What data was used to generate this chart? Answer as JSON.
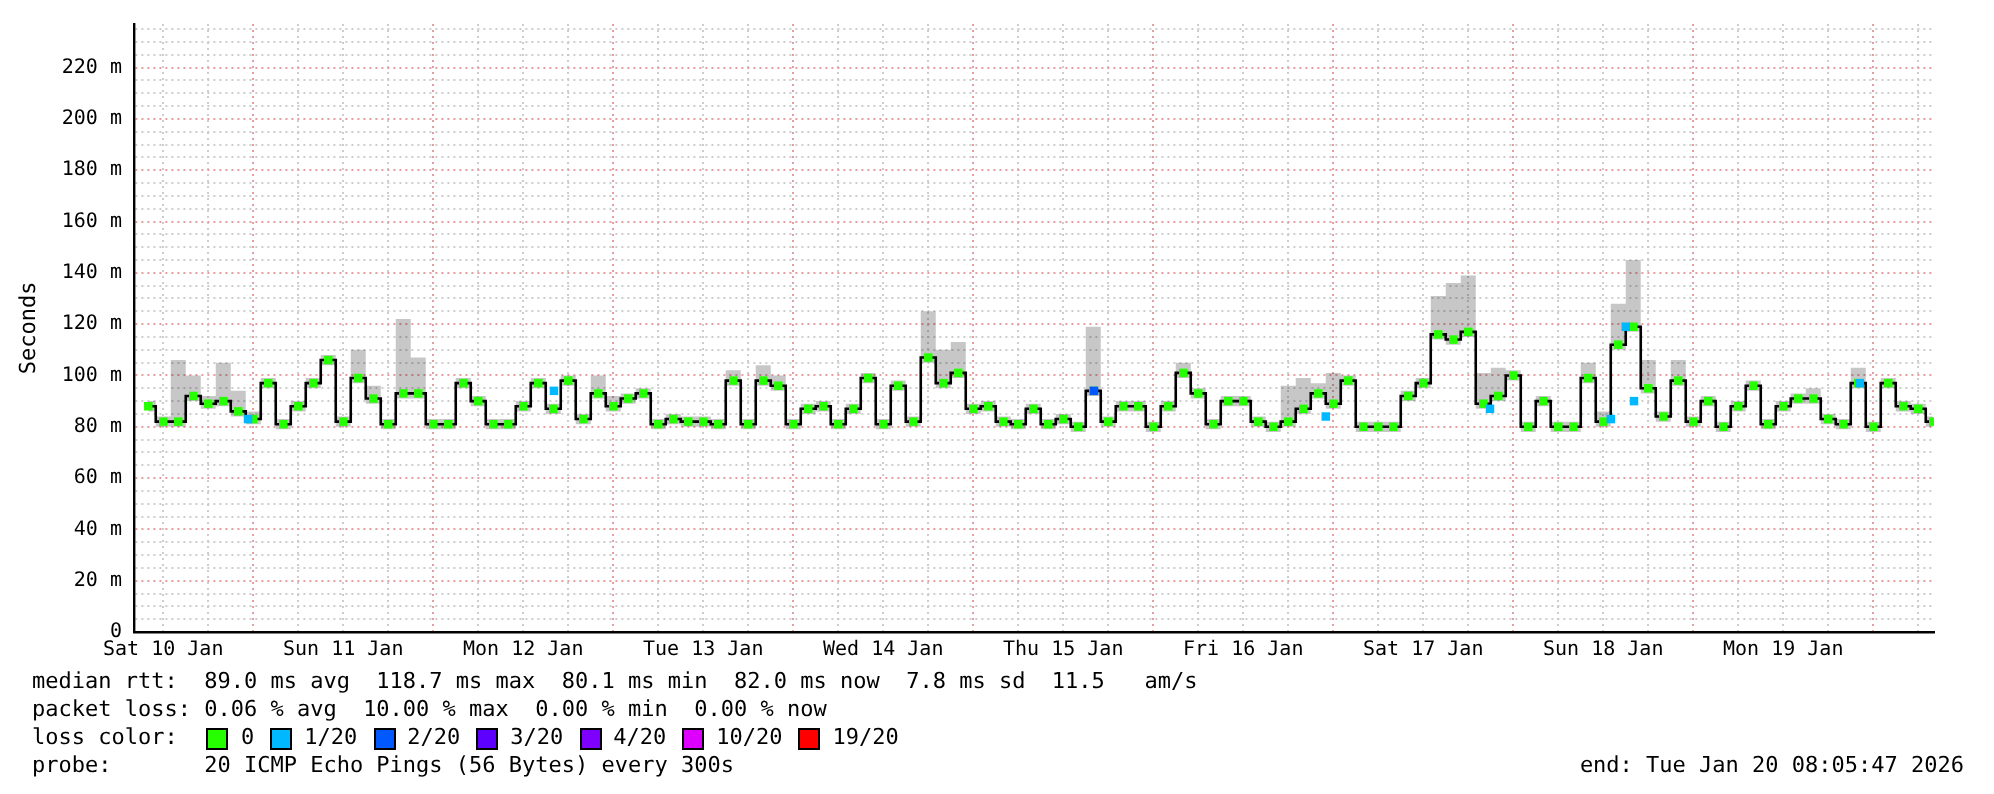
{
  "chart_data": {
    "type": "line",
    "ylabel": "Seconds",
    "grid": true,
    "legend": "bottom",
    "legend_title": "loss color:",
    "xlim": [
      "2026-01-10T08:06",
      "2026-01-20T08:06"
    ],
    "ylim": [
      0,
      237
    ],
    "x": [
      "2026-01-10T10:00",
      "2026-01-10T12:00",
      "2026-01-10T14:00",
      "2026-01-10T16:00",
      "2026-01-10T18:00",
      "2026-01-10T20:00",
      "2026-01-10T22:00",
      "2026-01-11T00:00",
      "2026-01-11T02:00",
      "2026-01-11T04:00",
      "2026-01-11T06:00",
      "2026-01-11T08:00",
      "2026-01-11T10:00",
      "2026-01-11T12:00",
      "2026-01-11T14:00",
      "2026-01-11T16:00",
      "2026-01-11T18:00",
      "2026-01-11T20:00",
      "2026-01-11T22:00",
      "2026-01-12T00:00",
      "2026-01-12T02:00",
      "2026-01-12T04:00",
      "2026-01-12T06:00",
      "2026-01-12T08:00",
      "2026-01-12T10:00",
      "2026-01-12T12:00",
      "2026-01-12T14:00",
      "2026-01-12T16:00",
      "2026-01-12T18:00",
      "2026-01-12T20:00",
      "2026-01-12T22:00",
      "2026-01-13T00:00",
      "2026-01-13T02:00",
      "2026-01-13T04:00",
      "2026-01-13T06:00",
      "2026-01-13T08:00",
      "2026-01-13T10:00",
      "2026-01-13T12:00",
      "2026-01-13T14:00",
      "2026-01-13T16:00",
      "2026-01-13T18:00",
      "2026-01-13T20:00",
      "2026-01-13T22:00",
      "2026-01-14T00:00",
      "2026-01-14T02:00",
      "2026-01-14T04:00",
      "2026-01-14T06:00",
      "2026-01-14T08:00",
      "2026-01-14T10:00",
      "2026-01-14T12:00",
      "2026-01-14T14:00",
      "2026-01-14T16:00",
      "2026-01-14T18:00",
      "2026-01-14T20:00",
      "2026-01-14T22:00",
      "2026-01-15T00:00",
      "2026-01-15T02:00",
      "2026-01-15T04:00",
      "2026-01-15T06:00",
      "2026-01-15T08:00",
      "2026-01-15T10:00",
      "2026-01-15T12:00",
      "2026-01-15T14:00",
      "2026-01-15T16:00",
      "2026-01-15T18:00",
      "2026-01-15T20:00",
      "2026-01-15T22:00",
      "2026-01-16T00:00",
      "2026-01-16T02:00",
      "2026-01-16T04:00",
      "2026-01-16T06:00",
      "2026-01-16T08:00",
      "2026-01-16T10:00",
      "2026-01-16T12:00",
      "2026-01-16T14:00",
      "2026-01-16T16:00",
      "2026-01-16T18:00",
      "2026-01-16T20:00",
      "2026-01-16T22:00",
      "2026-01-17T00:00",
      "2026-01-17T02:00",
      "2026-01-17T04:00",
      "2026-01-17T06:00",
      "2026-01-17T08:00",
      "2026-01-17T10:00",
      "2026-01-17T12:00",
      "2026-01-17T14:00",
      "2026-01-17T16:00",
      "2026-01-17T18:00",
      "2026-01-17T20:00",
      "2026-01-17T22:00",
      "2026-01-18T00:00",
      "2026-01-18T02:00",
      "2026-01-18T04:00",
      "2026-01-18T06:00",
      "2026-01-18T08:00",
      "2026-01-18T10:00",
      "2026-01-18T12:00",
      "2026-01-18T14:00",
      "2026-01-18T16:00",
      "2026-01-18T18:00",
      "2026-01-18T20:00",
      "2026-01-18T22:00",
      "2026-01-19T00:00",
      "2026-01-19T02:00",
      "2026-01-19T04:00",
      "2026-01-19T06:00",
      "2026-01-19T08:00",
      "2026-01-19T10:00",
      "2026-01-19T12:00",
      "2026-01-19T14:00",
      "2026-01-19T16:00",
      "2026-01-19T18:00",
      "2026-01-19T20:00",
      "2026-01-19T22:00",
      "2026-01-20T00:00",
      "2026-01-20T02:00",
      "2026-01-20T04:00",
      "2026-01-20T06:00",
      "2026-01-20T08:00"
    ],
    "series": [
      {
        "type": "step",
        "color": "#000000",
        "marker": "none",
        "values": [
          88,
          82,
          82,
          92,
          89,
          90,
          86,
          83,
          97,
          81,
          88,
          97,
          106,
          82,
          99,
          91,
          81,
          93,
          93,
          81,
          81,
          97,
          90,
          81,
          81,
          88,
          97,
          87,
          98,
          83,
          93,
          88,
          91,
          93,
          81,
          83,
          82,
          82,
          81,
          98,
          81,
          98,
          96,
          81,
          87,
          88,
          81,
          87,
          99,
          81,
          96,
          82,
          107,
          97,
          101,
          87,
          88,
          82,
          81,
          87,
          81,
          83,
          80,
          94,
          82,
          88,
          88,
          80,
          88,
          101,
          93,
          81,
          90,
          90,
          82,
          80,
          82,
          87,
          93,
          89,
          98,
          80,
          80,
          80,
          92,
          97,
          116,
          114,
          117,
          89,
          92,
          100,
          80,
          90,
          80,
          80,
          99,
          82,
          112,
          119,
          95,
          84,
          98,
          82,
          90,
          80,
          88,
          96,
          81,
          88,
          91,
          91,
          83,
          81,
          97,
          80,
          97,
          88,
          87,
          82
        ],
        "lower": [
          86,
          80,
          80,
          90,
          87,
          88,
          84,
          81,
          95,
          79,
          86,
          95,
          104,
          80,
          97,
          89,
          79,
          91,
          91,
          79,
          79,
          95,
          88,
          79,
          79,
          86,
          95,
          85,
          96,
          81,
          91,
          86,
          89,
          91,
          79,
          81,
          80,
          80,
          79,
          96,
          79,
          96,
          94,
          79,
          85,
          86,
          79,
          85,
          97,
          79,
          94,
          80,
          105,
          95,
          99,
          85,
          86,
          80,
          79,
          85,
          79,
          81,
          78,
          92,
          80,
          86,
          86,
          78,
          86,
          99,
          91,
          79,
          88,
          88,
          80,
          78,
          80,
          85,
          91,
          87,
          96,
          78,
          78,
          78,
          90,
          95,
          114,
          112,
          115,
          87,
          90,
          98,
          78,
          88,
          78,
          78,
          97,
          80,
          110,
          117,
          93,
          82,
          96,
          80,
          88,
          78,
          86,
          94,
          79,
          86,
          89,
          89,
          81,
          79,
          95,
          78,
          95,
          86,
          85,
          80
        ],
        "upper": [
          90,
          84,
          106,
          100,
          92,
          105,
          94,
          86,
          99,
          83,
          90,
          99,
          108,
          84,
          110,
          96,
          83,
          122,
          107,
          83,
          83,
          99,
          92,
          83,
          83,
          90,
          99,
          89,
          100,
          85,
          100,
          92,
          93,
          95,
          83,
          85,
          84,
          84,
          83,
          102,
          83,
          104,
          100,
          83,
          89,
          90,
          83,
          89,
          101,
          83,
          98,
          84,
          125,
          110,
          113,
          89,
          90,
          84,
          83,
          89,
          83,
          85,
          82,
          119,
          84,
          90,
          90,
          82,
          90,
          105,
          95,
          83,
          92,
          92,
          84,
          82,
          96,
          99,
          97,
          101,
          100,
          82,
          82,
          82,
          94,
          99,
          131,
          136,
          139,
          101,
          103,
          102,
          82,
          92,
          82,
          82,
          105,
          86,
          128,
          145,
          106,
          86,
          106,
          84,
          92,
          82,
          90,
          98,
          83,
          90,
          93,
          95,
          85,
          83,
          103,
          82,
          99,
          90,
          89,
          84
        ]
      },
      {
        "name": "0",
        "type": "scatter",
        "color": "#26ff00",
        "marker": "square",
        "values": [
          88,
          82,
          82,
          92,
          89,
          90,
          86,
          83,
          97,
          81,
          88,
          97,
          106,
          82,
          99,
          91,
          81,
          93,
          93,
          81,
          81,
          97,
          90,
          81,
          81,
          88,
          97,
          87,
          98,
          83,
          93,
          88,
          91,
          93,
          81,
          83,
          82,
          82,
          81,
          98,
          81,
          98,
          96,
          81,
          87,
          88,
          81,
          87,
          99,
          81,
          96,
          82,
          107,
          97,
          101,
          87,
          88,
          82,
          81,
          87,
          81,
          83,
          80,
          94,
          82,
          88,
          88,
          80,
          88,
          101,
          93,
          81,
          90,
          90,
          82,
          80,
          82,
          87,
          93,
          89,
          98,
          80,
          80,
          80,
          92,
          97,
          116,
          114,
          117,
          89,
          92,
          100,
          80,
          90,
          80,
          80,
          99,
          82,
          112,
          119,
          95,
          84,
          98,
          82,
          90,
          80,
          88,
          96,
          81,
          88,
          91,
          91,
          83,
          81,
          97,
          80,
          97,
          88,
          87,
          82
        ]
      },
      {
        "name": "1/20",
        "type": "scatter",
        "color": "#00b8ff",
        "marker": "square",
        "x": [
          "2026-01-10T23:18",
          "2026-01-12T16:06",
          "2026-01-16T23:00",
          "2026-01-17T20:54",
          "2026-01-18T13:00",
          "2026-01-18T15:00",
          "2026-01-18T16:06",
          "2026-01-19T22:12"
        ],
        "values": [
          83,
          94,
          84,
          87,
          83,
          119,
          90,
          97
        ]
      },
      {
        "name": "2/20",
        "type": "scatter",
        "color": "#0059ff",
        "marker": "square",
        "x": [
          "2026-01-15T16:06"
        ],
        "values": [
          94
        ]
      },
      {
        "name": "3/20",
        "type": "scatter",
        "color": "#5e00ff",
        "marker": "square",
        "values": [
          null,
          null,
          null,
          null,
          null,
          null,
          null,
          null,
          null,
          null,
          null,
          null,
          null,
          null,
          null,
          null,
          null,
          null,
          null,
          null,
          null,
          null,
          null,
          null,
          null,
          null,
          null,
          null,
          null,
          null,
          null,
          null,
          null,
          null,
          null,
          null,
          null,
          null,
          null,
          null,
          null,
          null,
          null,
          null,
          null,
          null,
          null,
          null,
          null,
          null,
          null,
          null,
          null,
          null,
          null,
          null,
          null,
          null,
          null,
          null,
          null,
          null,
          null,
          null,
          null,
          null,
          null,
          null,
          null,
          null,
          null,
          null,
          null,
          null,
          null,
          null,
          null,
          null,
          null,
          null,
          null,
          null,
          null,
          null,
          null,
          null,
          null,
          null,
          null,
          null,
          null,
          null,
          null,
          null,
          null,
          null,
          null,
          null,
          null,
          null,
          null,
          null,
          null,
          null,
          null,
          null,
          null,
          null,
          null,
          null,
          null,
          null,
          null,
          null,
          null,
          null,
          null,
          null,
          null,
          null
        ]
      },
      {
        "name": "4/20",
        "type": "scatter",
        "color": "#7e00ff",
        "marker": "square",
        "values": [
          null,
          null,
          null,
          null,
          null,
          null,
          null,
          null,
          null,
          null,
          null,
          null,
          null,
          null,
          null,
          null,
          null,
          null,
          null,
          null,
          null,
          null,
          null,
          null,
          null,
          null,
          null,
          null,
          null,
          null,
          null,
          null,
          null,
          null,
          null,
          null,
          null,
          null,
          null,
          null,
          null,
          null,
          null,
          null,
          null,
          null,
          null,
          null,
          null,
          null,
          null,
          null,
          null,
          null,
          null,
          null,
          null,
          null,
          null,
          null,
          null,
          null,
          null,
          null,
          null,
          null,
          null,
          null,
          null,
          null,
          null,
          null,
          null,
          null,
          null,
          null,
          null,
          null,
          null,
          null,
          null,
          null,
          null,
          null,
          null,
          null,
          null,
          null,
          null,
          null,
          null,
          null,
          null,
          null,
          null,
          null,
          null,
          null,
          null,
          null,
          null,
          null,
          null,
          null,
          null,
          null,
          null,
          null,
          null,
          null,
          null,
          null,
          null,
          null,
          null,
          null,
          null,
          null,
          null,
          null
        ]
      },
      {
        "name": "10/20",
        "type": "scatter",
        "color": "#dd00ff",
        "marker": "square",
        "values": [
          null,
          null,
          null,
          null,
          null,
          null,
          null,
          null,
          null,
          null,
          null,
          null,
          null,
          null,
          null,
          null,
          null,
          null,
          null,
          null,
          null,
          null,
          null,
          null,
          null,
          null,
          null,
          null,
          null,
          null,
          null,
          null,
          null,
          null,
          null,
          null,
          null,
          null,
          null,
          null,
          null,
          null,
          null,
          null,
          null,
          null,
          null,
          null,
          null,
          null,
          null,
          null,
          null,
          null,
          null,
          null,
          null,
          null,
          null,
          null,
          null,
          null,
          null,
          null,
          null,
          null,
          null,
          null,
          null,
          null,
          null,
          null,
          null,
          null,
          null,
          null,
          null,
          null,
          null,
          null,
          null,
          null,
          null,
          null,
          null,
          null,
          null,
          null,
          null,
          null,
          null,
          null,
          null,
          null,
          null,
          null,
          null,
          null,
          null,
          null,
          null,
          null,
          null,
          null,
          null,
          null,
          null,
          null,
          null,
          null,
          null,
          null,
          null,
          null,
          null,
          null,
          null,
          null,
          null,
          null
        ]
      },
      {
        "name": "19/20",
        "type": "scatter",
        "color": "#ff0000",
        "marker": "square",
        "values": [
          null,
          null,
          null,
          null,
          null,
          null,
          null,
          null,
          null,
          null,
          null,
          null,
          null,
          null,
          null,
          null,
          null,
          null,
          null,
          null,
          null,
          null,
          null,
          null,
          null,
          null,
          null,
          null,
          null,
          null,
          null,
          null,
          null,
          null,
          null,
          null,
          null,
          null,
          null,
          null,
          null,
          null,
          null,
          null,
          null,
          null,
          null,
          null,
          null,
          null,
          null,
          null,
          null,
          null,
          null,
          null,
          null,
          null,
          null,
          null,
          null,
          null,
          null,
          null,
          null,
          null,
          null,
          null,
          null,
          null,
          null,
          null,
          null,
          null,
          null,
          null,
          null,
          null,
          null,
          null,
          null,
          null,
          null,
          null,
          null,
          null,
          null,
          null,
          null,
          null,
          null,
          null,
          null,
          null,
          null,
          null,
          null,
          null,
          null,
          null,
          null,
          null,
          null,
          null,
          null,
          null,
          null,
          null,
          null,
          null,
          null,
          null,
          null,
          null,
          null,
          null,
          null,
          null,
          null,
          null
        ]
      }
    ],
    "yticks": [
      0,
      {
        "value": 5,
        "label": null
      },
      {
        "value": 10,
        "label": null
      },
      {
        "value": 15,
        "label": null
      },
      {
        "value": 20,
        "label": "20 m"
      },
      {
        "value": 25,
        "label": null
      },
      {
        "value": 30,
        "label": null
      },
      {
        "value": 35,
        "label": null
      },
      {
        "value": 40,
        "label": "40 m"
      },
      {
        "value": 45,
        "label": null
      },
      {
        "value": 50,
        "label": null
      },
      {
        "value": 55,
        "label": null
      },
      {
        "value": 60,
        "label": "60 m"
      },
      {
        "value": 65,
        "label": null
      },
      {
        "value": 70,
        "label": null
      },
      {
        "value": 75,
        "label": null
      },
      {
        "value": 80,
        "label": "80 m"
      },
      {
        "value": 85,
        "label": null
      },
      {
        "value": 90,
        "label": null
      },
      {
        "value": 95,
        "label": null
      },
      {
        "value": 100,
        "label": "100 m"
      },
      {
        "value": 105,
        "label": null
      },
      {
        "value": 110,
        "label": null
      },
      {
        "value": 115,
        "label": null
      },
      {
        "value": 120,
        "label": "120 m"
      },
      {
        "value": 125,
        "label": null
      },
      {
        "value": 130,
        "label": null
      },
      {
        "value": 135,
        "label": null
      },
      {
        "value": 140,
        "label": "140 m"
      },
      {
        "value": 145,
        "label": null
      },
      {
        "value": 150,
        "label": null
      },
      {
        "value": 155,
        "label": null
      },
      {
        "value": 160,
        "label": "160 m"
      },
      {
        "value": 165,
        "label": null
      },
      {
        "value": 170,
        "label": null
      },
      {
        "value": 175,
        "label": null
      },
      {
        "value": 180,
        "label": "180 m"
      },
      {
        "value": 185,
        "label": null
      },
      {
        "value": 190,
        "label": null
      },
      {
        "value": 195,
        "label": null
      },
      {
        "value": 200,
        "label": "200 m"
      },
      {
        "value": 205,
        "label": null
      },
      {
        "value": 210,
        "label": null
      },
      {
        "value": 215,
        "label": null
      },
      {
        "value": 220,
        "label": "220 m"
      },
      {
        "value": 225,
        "label": null
      },
      {
        "value": 230,
        "label": null
      },
      {
        "value": 235,
        "label": null
      }
    ],
    "xticks": [
      {
        "value": "2026-01-10T12:00",
        "label": "Sat 10 Jan"
      },
      {
        "value": "2026-01-10T18:00",
        "label": null
      },
      {
        "value": "2026-01-11T00:00",
        "label": null
      },
      {
        "value": "2026-01-11T06:00",
        "label": null
      },
      {
        "value": "2026-01-11T12:00",
        "label": "Sun 11 Jan"
      },
      {
        "value": "2026-01-11T18:00",
        "label": null
      },
      {
        "value": "2026-01-12T00:00",
        "label": null
      },
      {
        "value": "2026-01-12T06:00",
        "label": null
      },
      {
        "value": "2026-01-12T12:00",
        "label": "Mon 12 Jan"
      },
      {
        "value": "2026-01-12T18:00",
        "label": null
      },
      {
        "value": "2026-01-13T00:00",
        "label": null
      },
      {
        "value": "2026-01-13T06:00",
        "label": null
      },
      {
        "value": "2026-01-13T12:00",
        "label": "Tue 13 Jan"
      },
      {
        "value": "2026-01-13T18:00",
        "label": null
      },
      {
        "value": "2026-01-14T00:00",
        "label": null
      },
      {
        "value": "2026-01-14T06:00",
        "label": null
      },
      {
        "value": "2026-01-14T12:00",
        "label": "Wed 14 Jan"
      },
      {
        "value": "2026-01-14T18:00",
        "label": null
      },
      {
        "value": "2026-01-15T00:00",
        "label": null
      },
      {
        "value": "2026-01-15T06:00",
        "label": null
      },
      {
        "value": "2026-01-15T12:00",
        "label": "Thu 15 Jan"
      },
      {
        "value": "2026-01-15T18:00",
        "label": null
      },
      {
        "value": "2026-01-16T00:00",
        "label": null
      },
      {
        "value": "2026-01-16T06:00",
        "label": null
      },
      {
        "value": "2026-01-16T12:00",
        "label": "Fri 16 Jan"
      },
      {
        "value": "2026-01-16T18:00",
        "label": null
      },
      {
        "value": "2026-01-17T00:00",
        "label": null
      },
      {
        "value": "2026-01-17T06:00",
        "label": null
      },
      {
        "value": "2026-01-17T12:00",
        "label": "Sat 17 Jan"
      },
      {
        "value": "2026-01-17T18:00",
        "label": null
      },
      {
        "value": "2026-01-18T00:00",
        "label": null
      },
      {
        "value": "2026-01-18T06:00",
        "label": null
      },
      {
        "value": "2026-01-18T12:00",
        "label": "Sun 18 Jan"
      },
      {
        "value": "2026-01-18T18:00",
        "label": null
      },
      {
        "value": "2026-01-19T00:00",
        "label": null
      },
      {
        "value": "2026-01-19T06:00",
        "label": null
      },
      {
        "value": "2026-01-19T12:00",
        "label": "Mon 19 Jan"
      },
      {
        "value": "2026-01-19T18:00",
        "label": null
      },
      {
        "value": "2026-01-20T00:00",
        "label": null
      },
      {
        "value": "2026-01-20T06:00",
        "label": null
      }
    ],
    "annotations": [
      "median rtt:  89.0 ms avg  118.7 ms max  80.1 ms min  82.0 ms now  7.8 ms sd  11.5   am/s",
      "packet loss: 0.06 % avg  10.00 % max  0.00 % min  0.00 % now",
      "probe:       20 ICMP Echo Pings (56 Bytes) every 300s",
      "end: Tue Jan 20 08:05:47 2026"
    ]
  }
}
